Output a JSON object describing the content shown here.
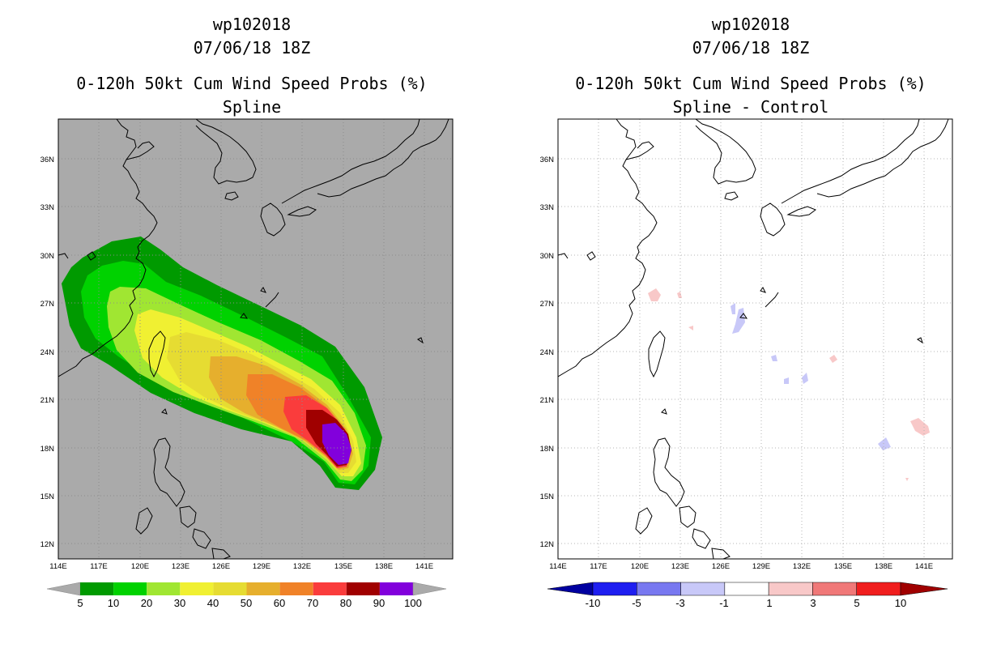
{
  "left_panel": {
    "storm_id": "wp102018",
    "datetime": "07/06/18 18Z",
    "product": "0-120h 50kt Cum Wind Speed Probs (%)",
    "subtitle": "Spline"
  },
  "right_panel": {
    "storm_id": "wp102018",
    "datetime": "07/06/18 18Z",
    "product": "0-120h 50kt Cum Wind Speed Probs (%)",
    "subtitle": "Spline - Control"
  },
  "axes": {
    "lon_ticks": [
      "114E",
      "117E",
      "120E",
      "123E",
      "126E",
      "129E",
      "132E",
      "135E",
      "138E",
      "141E"
    ],
    "lat_ticks": [
      "12N",
      "15N",
      "18N",
      "21N",
      "24N",
      "27N",
      "30N",
      "33N",
      "36N"
    ]
  },
  "left_colorbar": {
    "colors": [
      "#009a00",
      "#00d200",
      "#a0e632",
      "#f0f032",
      "#e6dc32",
      "#e6af2d",
      "#f08228",
      "#fa3c3c",
      "#a00000",
      "#8200dc"
    ],
    "labels": [
      "5",
      "10",
      "20",
      "30",
      "40",
      "50",
      "60",
      "70",
      "80",
      "90",
      "100"
    ]
  },
  "right_colorbar": {
    "colors": [
      "#0000a0",
      "#1e1ef0",
      "#7878f0",
      "#c8c8f8",
      "#ffffff",
      "#f8c8c8",
      "#f07878",
      "#f01e1e",
      "#a00000"
    ],
    "labels": [
      "-10",
      "-5",
      "-3",
      "-1",
      "1",
      "3",
      "5",
      "10"
    ]
  },
  "colors": {
    "map_background_left": "#aaaaaa",
    "map_background_right": "#ffffff",
    "coastline": "#000000",
    "gridline": "#b4b4b4"
  }
}
